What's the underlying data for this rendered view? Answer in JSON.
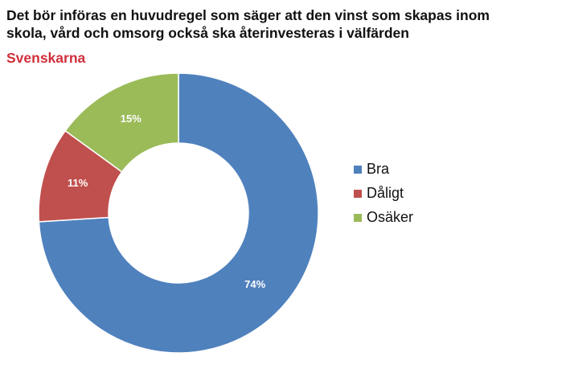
{
  "chart_data": {
    "type": "donut",
    "title": "Det bör införas en huvudregel som säger att den vinst som skapas inom skola, vård och omsorg också ska återinvesteras i välfärden",
    "subtitle": "Svenskarna",
    "categories": [
      "Bra",
      "Dåligt",
      "Osäker"
    ],
    "values": [
      74,
      11,
      15
    ],
    "value_labels": [
      "74%",
      "11%",
      "15%"
    ],
    "colors": [
      "#4f81bd",
      "#c0504d",
      "#9bbb59"
    ],
    "legend": "right"
  }
}
